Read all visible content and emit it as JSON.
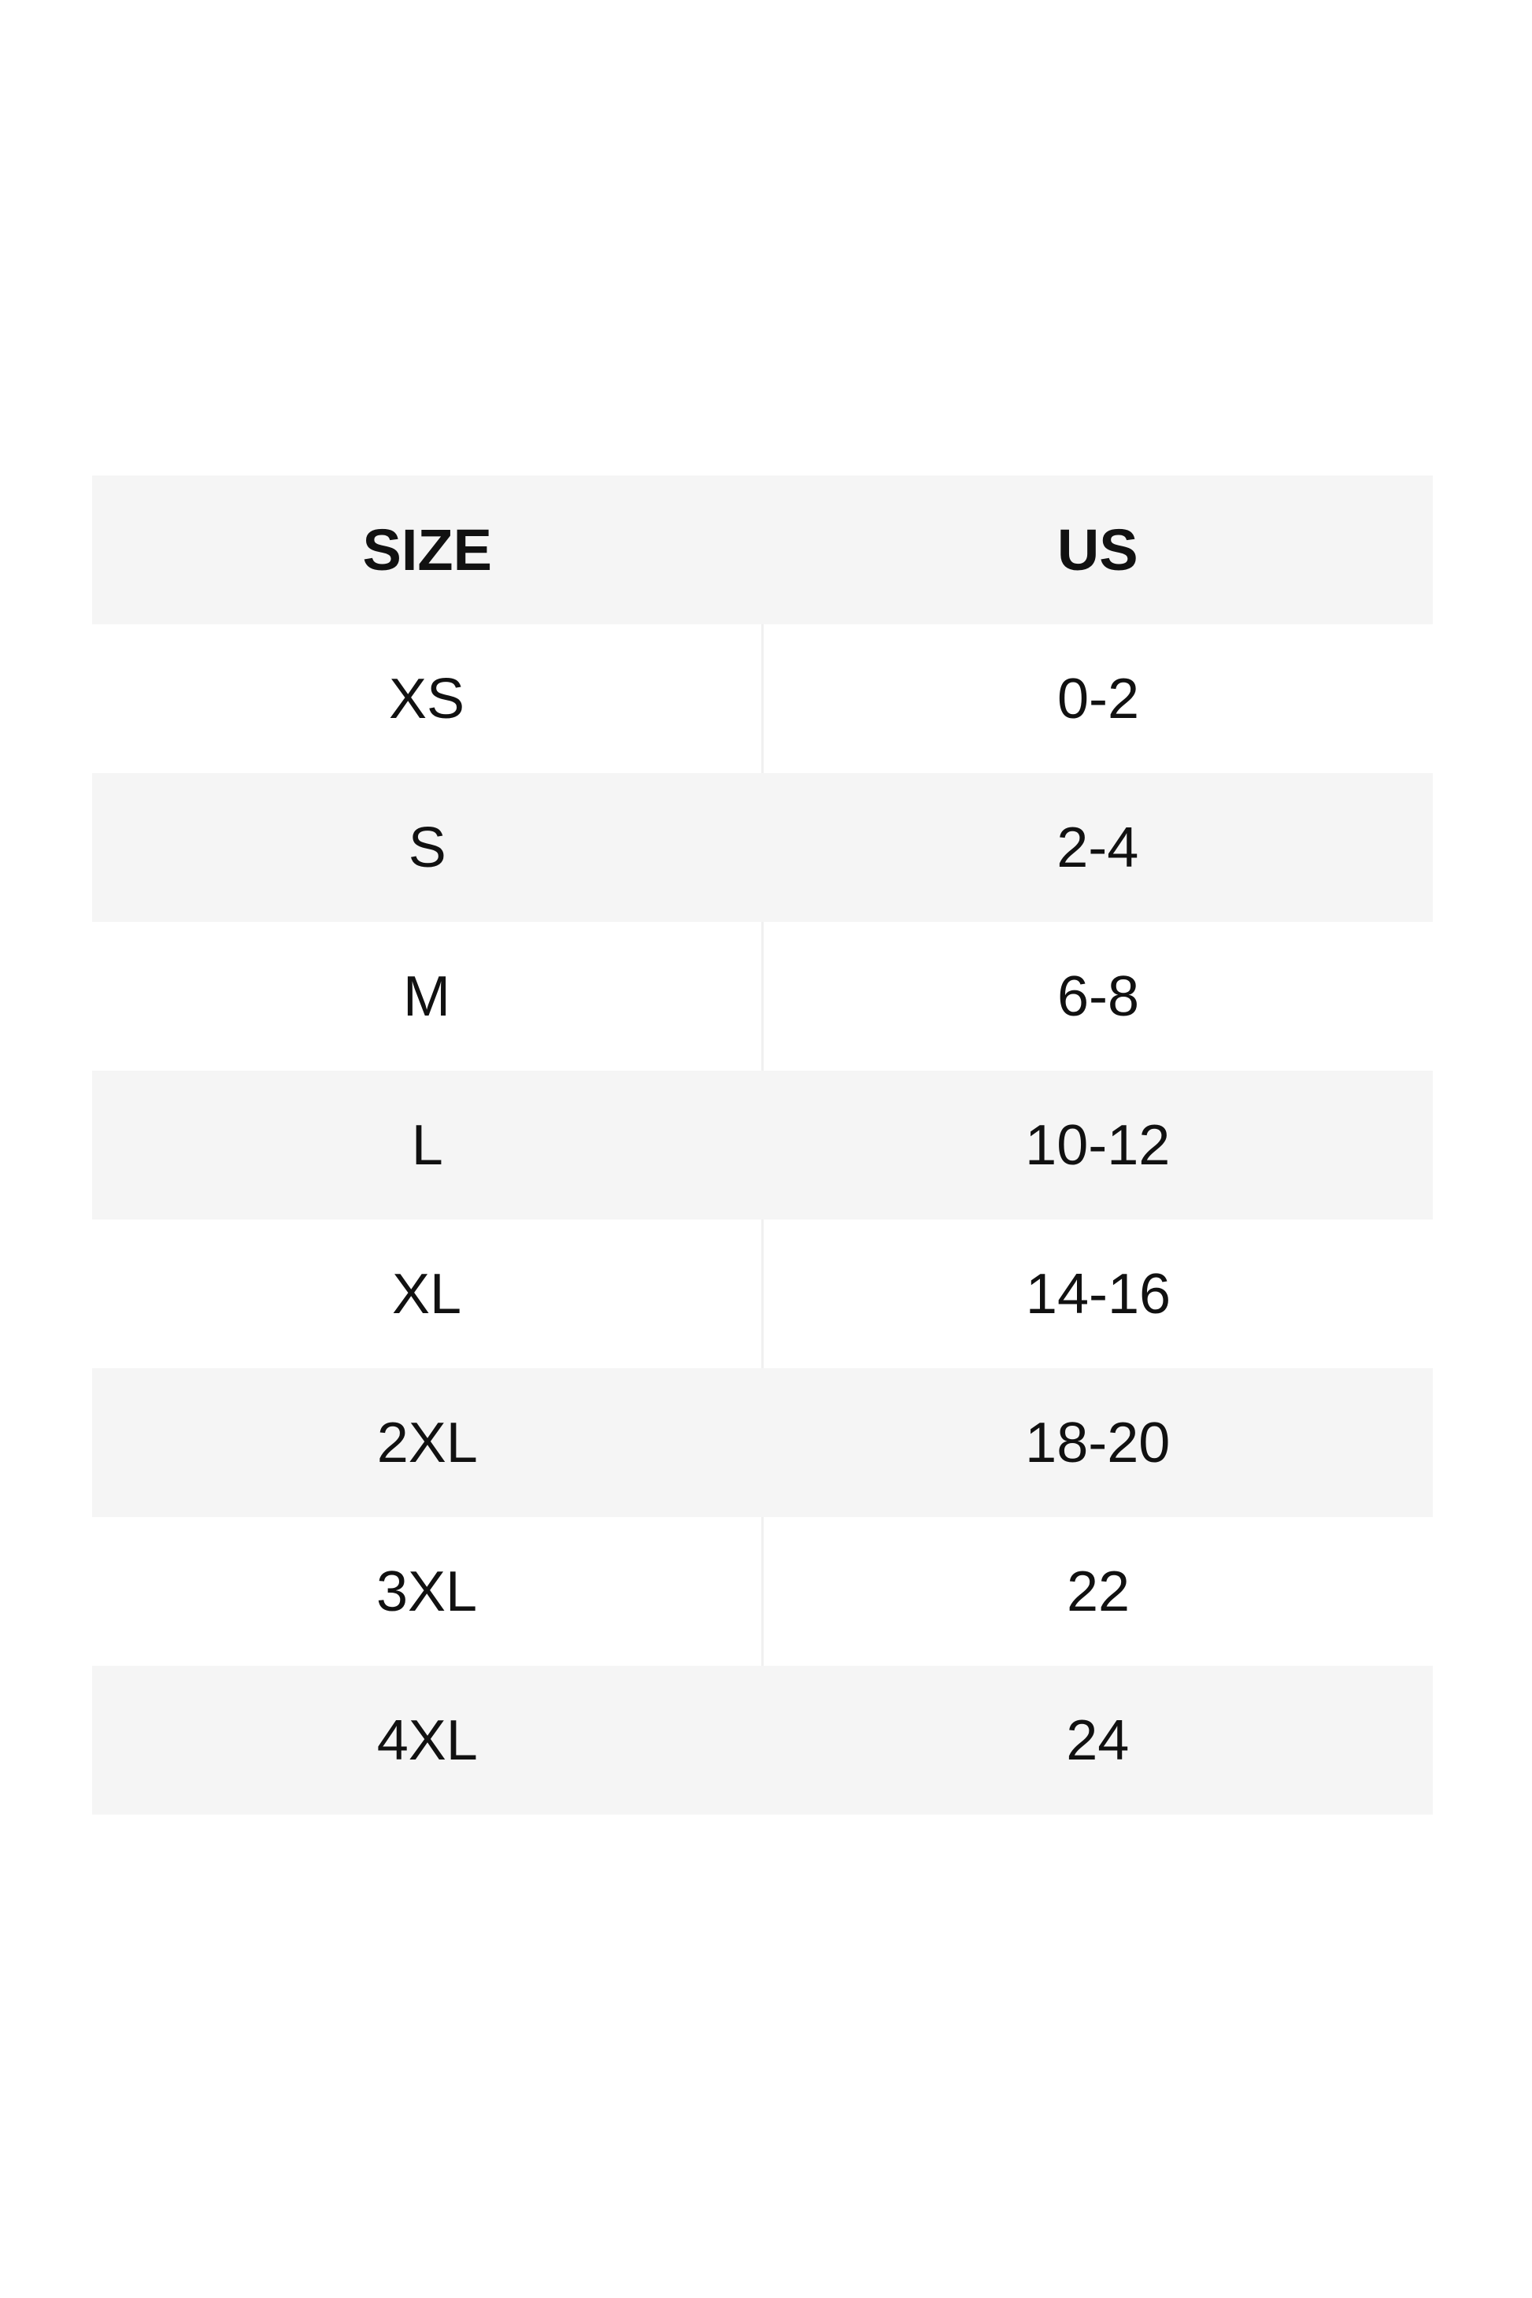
{
  "table": {
    "header": [
      "SIZE",
      "US"
    ],
    "rows": [
      [
        "XS",
        "0-2"
      ],
      [
        "S",
        "2-4"
      ],
      [
        "M",
        "6-8"
      ],
      [
        "L",
        "10-12"
      ],
      [
        "XL",
        "14-16"
      ],
      [
        "2XL",
        "18-20"
      ],
      [
        "3XL",
        "22"
      ],
      [
        "4XL",
        "24"
      ]
    ]
  }
}
